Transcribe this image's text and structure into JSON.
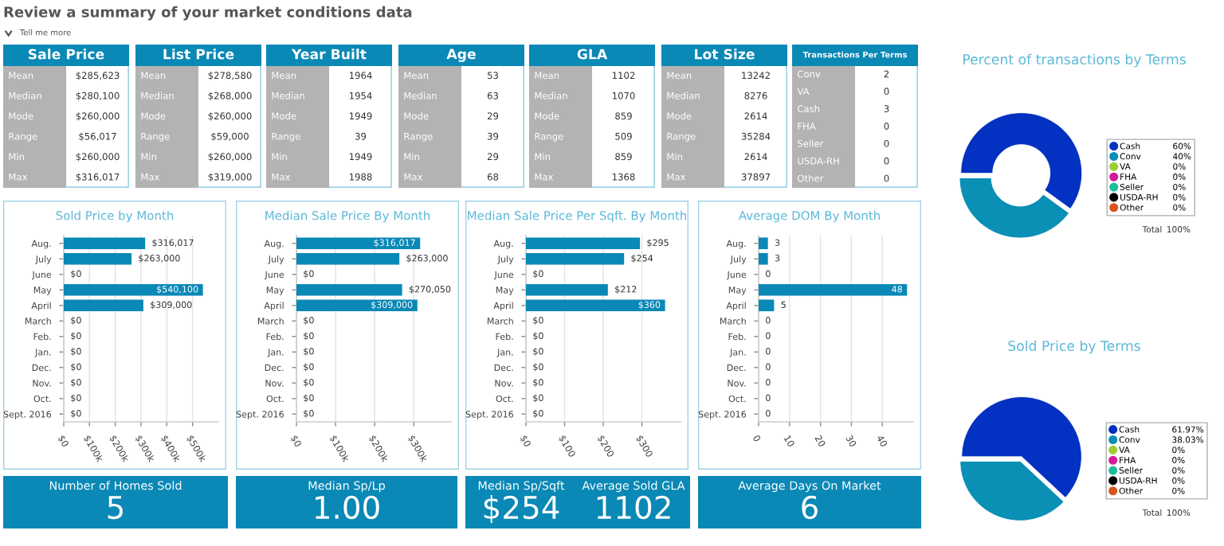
{
  "chart_data": [
    {
      "type": "other",
      "title": "Review a summary of your market conditions data",
      "annotations": [
        "Tell me more"
      ]
    },
    {
      "type": "other",
      "title": "Sale Price",
      "color": "#0a88b6",
      "categories": [
        "Mean",
        "Median",
        "Mode",
        "Range",
        "Min",
        "Max"
      ],
      "annotations": [
        "$285,623",
        "$280,100",
        "$260,000",
        "$56,017",
        "$260,000",
        "$316,017"
      ]
    },
    {
      "type": "other",
      "title": "List Price",
      "color": "#0a88b6",
      "categories": [
        "Mean",
        "Median",
        "Mode",
        "Range",
        "Min",
        "Max"
      ],
      "annotations": [
        "$278,580",
        "$268,000",
        "$260,000",
        "$59,000",
        "$260,000",
        "$319,000"
      ]
    },
    {
      "type": "other",
      "title": "Year Built",
      "color": "#0a88b6",
      "categories": [
        "Mean",
        "Median",
        "Mode",
        "Range",
        "Min",
        "Max"
      ],
      "annotations": [
        "1964",
        "1954",
        "1949",
        "39",
        "1949",
        "1988"
      ]
    },
    {
      "type": "other",
      "title": "Age",
      "color": "#0a88b6",
      "categories": [
        "Mean",
        "Median",
        "Mode",
        "Range",
        "Min",
        "Max"
      ],
      "annotations": [
        "53",
        "63",
        "29",
        "39",
        "29",
        "68"
      ]
    },
    {
      "type": "other",
      "title": "GLA",
      "color": "#0a88b6",
      "categories": [
        "Mean",
        "Median",
        "Mode",
        "Range",
        "Min",
        "Max"
      ],
      "annotations": [
        "1102",
        "1070",
        "859",
        "509",
        "859",
        "1368"
      ]
    },
    {
      "type": "other",
      "title": "Lot Size",
      "color": "#0a88b6",
      "categories": [
        "Mean",
        "Median",
        "Mode",
        "Range",
        "Min",
        "Max"
      ],
      "annotations": [
        "13242",
        "8276",
        "2614",
        "35284",
        "2614",
        "37897"
      ]
    },
    {
      "type": "other",
      "title": "Transactions Per Terms",
      "color": "#0a88b6",
      "categories": [
        "Conv",
        "VA",
        "Cash",
        "FHA",
        "Seller",
        "USDA-RH",
        "Other"
      ],
      "annotations": [
        "2",
        "0",
        "3",
        "0",
        "0",
        "0",
        "0"
      ]
    },
    {
      "type": "donut",
      "title": "Percent of transactions by Terms",
      "categories": [
        "Cash",
        "Conv",
        "VA",
        "FHA",
        "Seller",
        "USDA-RH",
        "Other"
      ],
      "values": [
        60,
        40,
        0,
        0,
        0,
        0,
        0
      ],
      "value_labels": [
        "60%",
        "40%",
        "0%",
        "0%",
        "0%",
        "0%",
        "0%"
      ],
      "colors": [
        "#0331c1",
        "#0a8fb5",
        "#9acd32",
        "#d4199d",
        "#1abc9c",
        "#000000",
        "#d9531e"
      ],
      "legend": "right",
      "annotations": [
        "Total",
        "100%"
      ]
    },
    {
      "type": "bar",
      "orientation": "horizontal",
      "title": "Sold Price by Month",
      "categories": [
        "Aug.",
        "July",
        "June",
        "May",
        "April",
        "March",
        "Feb.",
        "Jan.",
        "Dec.",
        "Nov.",
        "Oct.",
        "Sept. 2016"
      ],
      "values": [
        316017,
        263000,
        0,
        540100,
        309000,
        0,
        0,
        0,
        0,
        0,
        0,
        0
      ],
      "value_labels": [
        "$316,017",
        "$263,000",
        "$0",
        "$540,100",
        "$309,000",
        "$0",
        "$0",
        "$0",
        "$0",
        "$0",
        "$0",
        "$0"
      ],
      "color": "#0a88b6",
      "xlim": [
        0,
        600000
      ],
      "xticks": [
        {
          "value": 0,
          "label": "$0"
        },
        {
          "value": 100000,
          "label": "$100k"
        },
        {
          "value": 200000,
          "label": "$200k"
        },
        {
          "value": 300000,
          "label": "$300k"
        },
        {
          "value": 400000,
          "label": "$400k"
        },
        {
          "value": 500000,
          "label": "$500k"
        }
      ],
      "grid": "x"
    },
    {
      "type": "bar",
      "orientation": "horizontal",
      "title": "Median Sale Price By Month",
      "categories": [
        "Aug.",
        "July",
        "June",
        "May",
        "April",
        "March",
        "Feb.",
        "Jan.",
        "Dec.",
        "Nov.",
        "Oct.",
        "Sept. 2016"
      ],
      "values": [
        316017,
        263000,
        0,
        270050,
        309000,
        0,
        0,
        0,
        0,
        0,
        0,
        0
      ],
      "value_labels": [
        "$316,017",
        "$263,000",
        "$0",
        "$270,050",
        "$309,000",
        "$0",
        "$0",
        "$0",
        "$0",
        "$0",
        "$0",
        "$0"
      ],
      "color": "#0a88b6",
      "xlim": [
        0,
        395000
      ],
      "xticks": [
        {
          "value": 0,
          "label": "$0"
        },
        {
          "value": 100000,
          "label": "$100k"
        },
        {
          "value": 200000,
          "label": "$200k"
        },
        {
          "value": 300000,
          "label": "$300k"
        }
      ],
      "grid": "x"
    },
    {
      "type": "bar",
      "orientation": "horizontal",
      "title": "Median Sale Price Per Sqft. By Month",
      "categories": [
        "Aug.",
        "July",
        "June",
        "May",
        "April",
        "March",
        "Feb.",
        "Jan.",
        "Dec.",
        "Nov.",
        "Oct.",
        "Sept. 2016"
      ],
      "values": [
        295,
        254,
        0,
        212,
        360,
        0,
        0,
        0,
        0,
        0,
        0,
        0
      ],
      "value_labels": [
        "$295",
        "$254",
        "$0",
        "$212",
        "$360",
        "$0",
        "$0",
        "$0",
        "$0",
        "$0",
        "$0",
        "$0"
      ],
      "color": "#0a88b6",
      "xlim": [
        0,
        400
      ],
      "xticks": [
        {
          "value": 0,
          "label": "$0"
        },
        {
          "value": 100,
          "label": "$100"
        },
        {
          "value": 200,
          "label": "$200"
        },
        {
          "value": 300,
          "label": "$300"
        }
      ],
      "grid": "x"
    },
    {
      "type": "bar",
      "orientation": "horizontal",
      "title": "Average DOM By Month",
      "categories": [
        "Aug.",
        "July",
        "June",
        "May",
        "April",
        "March",
        "Feb.",
        "Jan.",
        "Dec.",
        "Nov.",
        "Oct.",
        "Sept. 2016"
      ],
      "values": [
        3,
        3,
        0,
        48,
        5,
        0,
        0,
        0,
        0,
        0,
        0,
        0
      ],
      "data_labels": true,
      "color": "#0a88b6",
      "xlim": [
        0,
        50
      ],
      "xticks": [
        0,
        10,
        20,
        30,
        40
      ],
      "grid": "x"
    },
    {
      "type": "pie",
      "title": "Sold Price by Terms",
      "categories": [
        "Cash",
        "Conv",
        "VA",
        "FHA",
        "Seller",
        "USDA-RH",
        "Other"
      ],
      "values": [
        61.97,
        38.03,
        0,
        0,
        0,
        0,
        0
      ],
      "value_labels": [
        "61.97%",
        "38.03%",
        "0%",
        "0%",
        "0%",
        "0%",
        "0%"
      ],
      "colors": [
        "#0331c1",
        "#0a8fb5",
        "#9acd32",
        "#d4199d",
        "#1abc9c",
        "#000000",
        "#d9531e"
      ],
      "legend": "right",
      "annotations": [
        "Total",
        "100%"
      ]
    },
    {
      "type": "other",
      "title": "Number of Homes Sold",
      "color": "#0a88b6",
      "annotations": [
        "5"
      ]
    },
    {
      "type": "other",
      "title": "Median Sp/Lp",
      "color": "#0a88b6",
      "annotations": [
        "1.00"
      ]
    },
    {
      "type": "other",
      "title": "Median Sp/Sqft",
      "color": "#0a88b6",
      "annotations": [
        "$254"
      ]
    },
    {
      "type": "other",
      "title": "Average Sold GLA",
      "color": "#0a88b6",
      "annotations": [
        "1102"
      ]
    },
    {
      "type": "other",
      "title": "Average Days On Market",
      "color": "#0a88b6",
      "annotations": [
        "6"
      ]
    }
  ]
}
